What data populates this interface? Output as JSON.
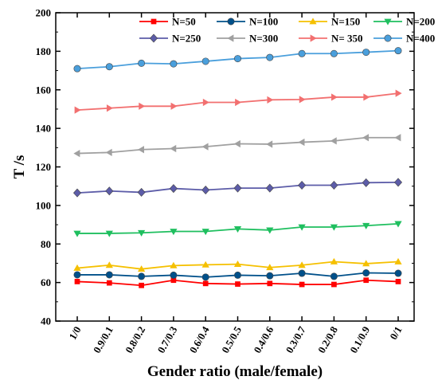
{
  "chart_data": {
    "type": "line",
    "title": "",
    "xlabel": "Gender ratio (male/female)",
    "ylabel": "T /s",
    "categories": [
      "1/0",
      "0.9/0.1",
      "0.8/0.2",
      "0.7/0.3",
      "0.6/0.4",
      "0.5/0.5",
      "0.4/0.6",
      "0.3/0.7",
      "0.2/0.8",
      "0.1/0.9",
      "0/1"
    ],
    "ylim": [
      40,
      200
    ],
    "yticks": [
      40,
      60,
      80,
      100,
      120,
      140,
      160,
      180,
      200
    ],
    "grid": false,
    "legend_position": "top-right",
    "series": [
      {
        "name": "N=50",
        "color": "#ff0000",
        "marker": "square",
        "values": [
          60.5,
          59.8,
          58.5,
          61.2,
          59.5,
          59.2,
          59.5,
          59.0,
          59.0,
          61.2,
          60.5
        ]
      },
      {
        "name": "N=100",
        "color": "#00508a",
        "marker": "circle",
        "values": [
          64.0,
          64.0,
          63.2,
          63.8,
          62.8,
          63.8,
          63.5,
          64.8,
          63.2,
          65.0,
          64.8
        ]
      },
      {
        "name": "N=150",
        "color": "#f5c000",
        "marker": "triangle-up",
        "values": [
          67.5,
          69.0,
          67.0,
          68.8,
          69.2,
          69.5,
          67.8,
          69.0,
          70.8,
          69.8,
          70.8
        ]
      },
      {
        "name": "N=200",
        "color": "#1fbf5f",
        "marker": "triangle-down",
        "values": [
          85.5,
          85.5,
          85.8,
          86.5,
          86.5,
          87.8,
          87.2,
          88.8,
          88.8,
          89.5,
          90.5
        ]
      },
      {
        "name": "N=250",
        "color": "#5c5ca8",
        "marker": "diamond",
        "values": [
          106.5,
          107.5,
          106.8,
          108.8,
          108.0,
          109.0,
          109.0,
          110.5,
          110.5,
          111.8,
          112.0
        ]
      },
      {
        "name": "N=300",
        "color": "#a0a0a0",
        "marker": "triangle-left",
        "values": [
          127.0,
          127.5,
          129.0,
          129.5,
          130.5,
          132.0,
          131.8,
          132.8,
          133.5,
          135.2,
          135.2
        ]
      },
      {
        "name": "N= 350",
        "color": "#f27070",
        "marker": "triangle-right",
        "values": [
          149.5,
          150.5,
          151.5,
          151.5,
          153.5,
          153.5,
          154.8,
          155.0,
          156.2,
          156.2,
          158.2
        ]
      },
      {
        "name": "N=400",
        "color": "#4a9fdc",
        "marker": "circle",
        "values": [
          171.0,
          172.0,
          173.8,
          173.5,
          174.8,
          176.2,
          176.8,
          178.8,
          178.8,
          179.5,
          180.3
        ]
      }
    ]
  }
}
